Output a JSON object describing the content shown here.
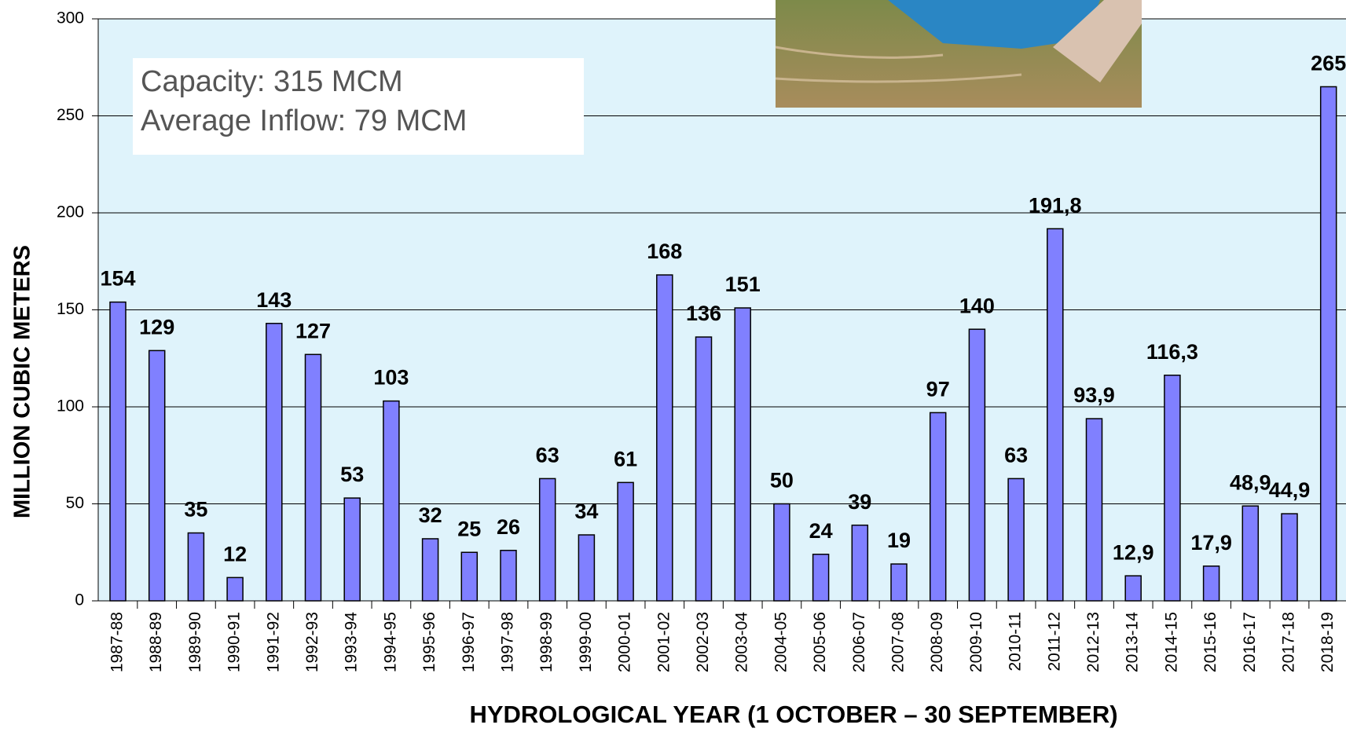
{
  "chart_data": {
    "type": "bar",
    "x_label": "HYDROLOGICAL YEAR (1 OCTOBER – 30 SEPTEMBER)",
    "y_label": "MILLION CUBIC METERS",
    "annotations": [
      "Capacity: 315 MCM",
      "Average Inflow: 79 MCM"
    ],
    "categories": [
      "1987-88",
      "1988-89",
      "1989-90",
      "1990-91",
      "1991-92",
      "1992-93",
      "1993-94",
      "1994-95",
      "1995-96",
      "1996-97",
      "1997-98",
      "1998-99",
      "1999-00",
      "2000-01",
      "2001-02",
      "2002-03",
      "2003-04",
      "2004-05",
      "2005-06",
      "2006-07",
      "2007-08",
      "2008-09",
      "2009-10",
      "2010-11",
      "2011-12",
      "2012-13",
      "2013-14",
      "2014-15",
      "2015-16",
      "2016-17",
      "2017-18",
      "2018-19"
    ],
    "values": [
      154,
      129,
      35,
      12,
      143,
      127,
      53,
      103,
      32,
      25,
      26,
      63,
      34,
      61,
      168,
      136,
      151,
      50,
      24,
      39,
      19,
      97,
      140,
      63,
      191.8,
      93.9,
      12.9,
      116.3,
      17.9,
      48.9,
      44.9,
      265
    ],
    "value_labels": [
      "154",
      "129",
      "35",
      "12",
      "143",
      "127",
      "53",
      "103",
      "32",
      "25",
      "26",
      "63",
      "34",
      "61",
      "168",
      "136",
      "151",
      "50",
      "24",
      "39",
      "19",
      "97",
      "140",
      "63",
      "191,8",
      "93,9",
      "12,9",
      "116,3",
      "17,9",
      "48,9",
      "44,9",
      "265"
    ],
    "color": "#8080ff",
    "ylim": [
      0,
      300
    ],
    "yticks": [
      0,
      50,
      100,
      150,
      200,
      250,
      300
    ],
    "grid": true
  }
}
